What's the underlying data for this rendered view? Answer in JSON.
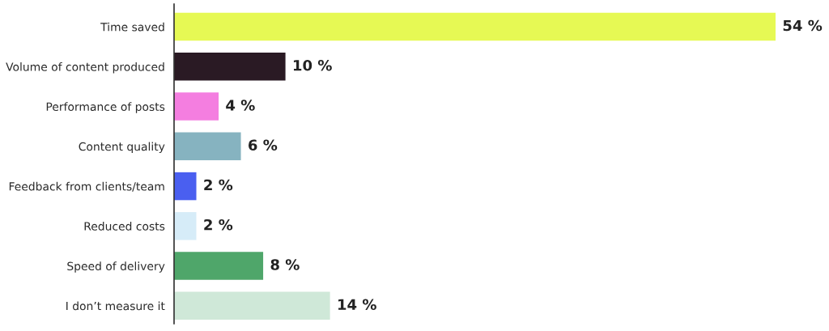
{
  "chart_data": {
    "type": "bar",
    "orientation": "horizontal",
    "categories": [
      "Time saved",
      "Volume of content produced",
      "Performance of posts",
      "Content quality",
      "Feedback from clients/team",
      "Reduced costs",
      "Speed of delivery",
      "I don’t measure it"
    ],
    "values": [
      54,
      10,
      4,
      6,
      2,
      2,
      8,
      14
    ],
    "colors": [
      "#e6f954",
      "#2a1a24",
      "#f47ee0",
      "#86b3c0",
      "#4a5ff0",
      "#d6ecf8",
      "#4fa66a",
      "#cfe8d8"
    ],
    "value_labels": [
      "54 %",
      "10 %",
      "4 %",
      "6 %",
      "2 %",
      "2 %",
      "8 %",
      "14 %"
    ],
    "tick_labels": "y",
    "grid": false
  }
}
